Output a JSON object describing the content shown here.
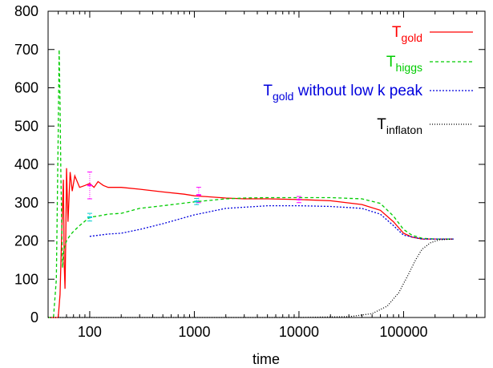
{
  "chart_data": {
    "type": "line",
    "title": "",
    "xlabel": "time",
    "ylabel": "",
    "xscale": "log",
    "xlim": [
      40,
      600000
    ],
    "ylim": [
      0,
      800
    ],
    "x_tick_labels": [
      "100",
      "1000",
      "10000",
      "100000"
    ],
    "x_tick_values": [
      100,
      1000,
      10000,
      100000
    ],
    "y_tick_labels": [
      "0",
      "100",
      "200",
      "300",
      "400",
      "500",
      "600",
      "700",
      "800"
    ],
    "y_tick_values": [
      0,
      100,
      200,
      300,
      400,
      500,
      600,
      700,
      800
    ],
    "grid": false,
    "legend_position": "top-right",
    "series": [
      {
        "name_main": "T",
        "name_sub": "gold",
        "color": "#ff0000",
        "dash": "none",
        "x": [
          40,
          50,
          52,
          54,
          56,
          57,
          58,
          59,
          60,
          62,
          65,
          68,
          72,
          80,
          90,
          100,
          110,
          120,
          135,
          150,
          200,
          300,
          500,
          800,
          1000,
          2000,
          3000,
          5000,
          10000,
          20000,
          40000,
          60000,
          80000,
          100000,
          120000,
          150000,
          200000,
          300000
        ],
        "y": [
          0,
          0,
          60,
          220,
          360,
          140,
          75,
          200,
          390,
          250,
          380,
          330,
          370,
          340,
          345,
          350,
          340,
          355,
          345,
          340,
          340,
          335,
          328,
          322,
          318,
          312,
          310,
          310,
          308,
          305,
          295,
          280,
          250,
          220,
          210,
          205,
          205,
          205
        ]
      },
      {
        "name_main": "T",
        "name_sub": "higgs",
        "color": "#00cc00",
        "dash": "4,3",
        "x": [
          40,
          45,
          48,
          50,
          51,
          52,
          53,
          54,
          55,
          56,
          58,
          60,
          65,
          70,
          80,
          100,
          120,
          150,
          200,
          300,
          500,
          1000,
          2000,
          3000,
          5000,
          10000,
          20000,
          40000,
          60000,
          80000,
          100000,
          120000,
          150000,
          200000,
          300000
        ],
        "y": [
          0,
          0,
          100,
          480,
          700,
          560,
          380,
          250,
          130,
          170,
          190,
          200,
          215,
          225,
          240,
          262,
          265,
          270,
          272,
          285,
          292,
          302,
          310,
          312,
          313,
          313,
          313,
          310,
          298,
          265,
          230,
          215,
          207,
          205,
          205
        ]
      },
      {
        "name_main": "T",
        "name_sub": "gold",
        "name_rest": " without low k peak",
        "color": "#0000dd",
        "dash": "2,2",
        "x": [
          100,
          150,
          200,
          300,
          500,
          1000,
          2000,
          5000,
          10000,
          20000,
          40000,
          60000,
          80000,
          100000,
          150000,
          200000,
          300000
        ],
        "y": [
          212,
          218,
          220,
          230,
          245,
          268,
          285,
          292,
          292,
          290,
          285,
          270,
          240,
          215,
          205,
          205,
          205
        ]
      },
      {
        "name_main": "T",
        "name_sub": "inflaton",
        "color": "#000000",
        "dash": "1,2",
        "x": [
          40,
          1000,
          10000,
          30000,
          50000,
          70000,
          90000,
          110000,
          130000,
          150000,
          180000,
          220000,
          300000
        ],
        "y": [
          0,
          0,
          0,
          2,
          10,
          30,
          65,
          110,
          150,
          178,
          195,
          203,
          205
        ]
      }
    ],
    "error_bars": [
      {
        "x": 100,
        "y": 345,
        "err": 35,
        "color": "#ff00ff"
      },
      {
        "x": 1100,
        "y": 320,
        "err": 20,
        "color": "#ff00ff"
      },
      {
        "x": 10000,
        "y": 308,
        "err": 8,
        "color": "#ff00ff"
      },
      {
        "x": 100,
        "y": 262,
        "err": 10,
        "color": "#00cccc"
      },
      {
        "x": 1050,
        "y": 303,
        "err": 8,
        "color": "#00cccc"
      }
    ]
  }
}
